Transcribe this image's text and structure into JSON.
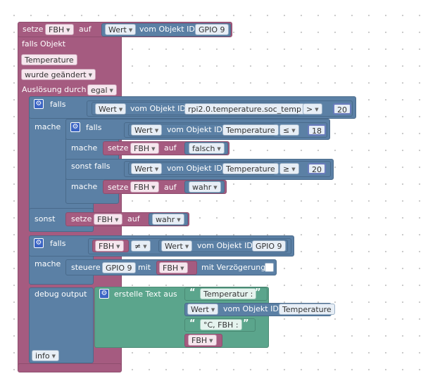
{
  "trigger": {
    "setze": "setze",
    "var": "FBH",
    "auf": "auf",
    "value_wert": "Wert",
    "vom_objekt_id": "vom Objekt ID",
    "value_oid": "GPIO 9",
    "falls_objekt": "falls Objekt",
    "object": "Temperature",
    "condition": "wurde geändert",
    "ausloesung": "Auslösung durch",
    "ausloesung_value": "egal"
  },
  "if1": {
    "falls": "falls",
    "wert": "Wert",
    "vom_objekt_id": "vom Objekt ID",
    "oid": "rpi2.0.temperature.soc_temp",
    "op": ">",
    "num": "20",
    "mache": "mache",
    "sonst": "sonst"
  },
  "if2": {
    "falls": "falls",
    "wert": "Wert",
    "vom_objekt_id": "vom Objekt ID",
    "oid": "Temperature",
    "op": "≤",
    "num": "18",
    "mache": "mache",
    "setze": "setze",
    "var": "FBH",
    "auf": "auf",
    "val": "falsch",
    "sonst_falls": "sonst falls",
    "wert2": "Wert",
    "vom_objekt_id2": "vom Objekt ID",
    "oid2": "Temperature",
    "op2": "≥",
    "num2": "20",
    "mache2": "mache",
    "setze2": "setze",
    "var2": "FBH",
    "auf2": "auf",
    "val2": "wahr"
  },
  "else_set": {
    "setze": "setze",
    "var": "FBH",
    "auf": "auf",
    "val": "wahr"
  },
  "if3": {
    "falls": "falls",
    "var": "FBH",
    "op": "≠",
    "wert": "Wert",
    "vom_objekt_id": "vom Objekt ID",
    "oid": "GPIO 9",
    "mache": "mache",
    "steuere": "steuere",
    "target": "GPIO 9",
    "mit": "mit",
    "value_var": "FBH",
    "mit_verz": "mit Verzögerung"
  },
  "debug": {
    "label": "debug output",
    "erstelle": "erstelle Text aus",
    "text1": "Temperatur :",
    "wert": "Wert",
    "vom_objekt_id": "vom Objekt ID",
    "oid": "Temperature",
    "text2": "°C, FBH :",
    "var": "FBH",
    "level": "info"
  },
  "colors": {
    "logic": "#5b80a5",
    "variables": "#a55b80",
    "text": "#5ba58c"
  }
}
